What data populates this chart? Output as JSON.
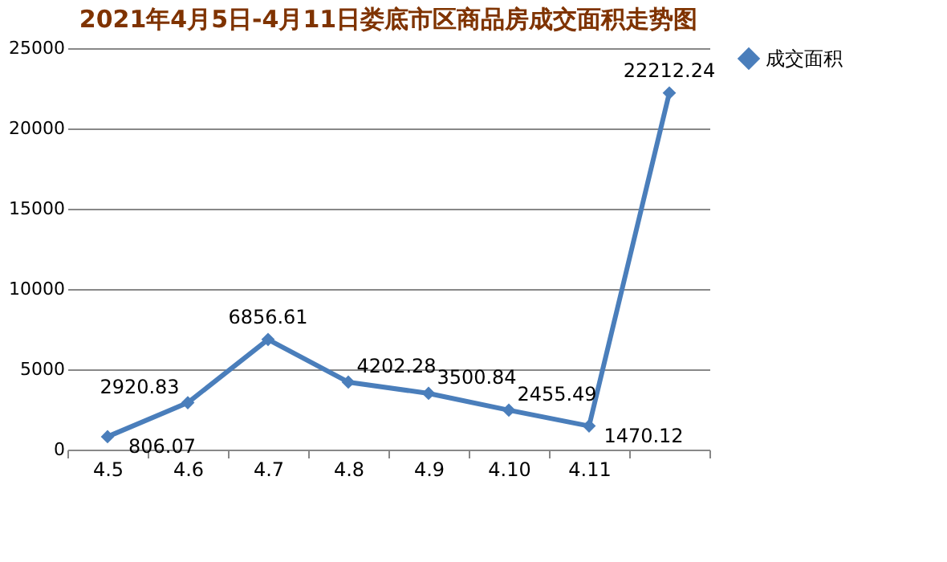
{
  "chart_data": {
    "type": "line",
    "title": "2021年4月5日-4月11日娄底市区商品房成交面积走势图",
    "categories": [
      "4.5",
      "4.6",
      "4.7",
      "4.8",
      "4.9",
      "4.10",
      "4.11",
      null
    ],
    "series": [
      {
        "name": "成交面积",
        "color": "#4a7ebb",
        "values": [
          806.07,
          2920.83,
          6856.61,
          4202.28,
          3500.84,
          2455.49,
          1470.12,
          22212.24
        ]
      }
    ],
    "ylim": [
      0,
      25000
    ],
    "yticks": [
      0,
      5000,
      10000,
      15000,
      20000,
      25000
    ],
    "grid": "y",
    "legend": "right",
    "marker": "diamond",
    "line_style": "solid",
    "data_labels": true
  }
}
